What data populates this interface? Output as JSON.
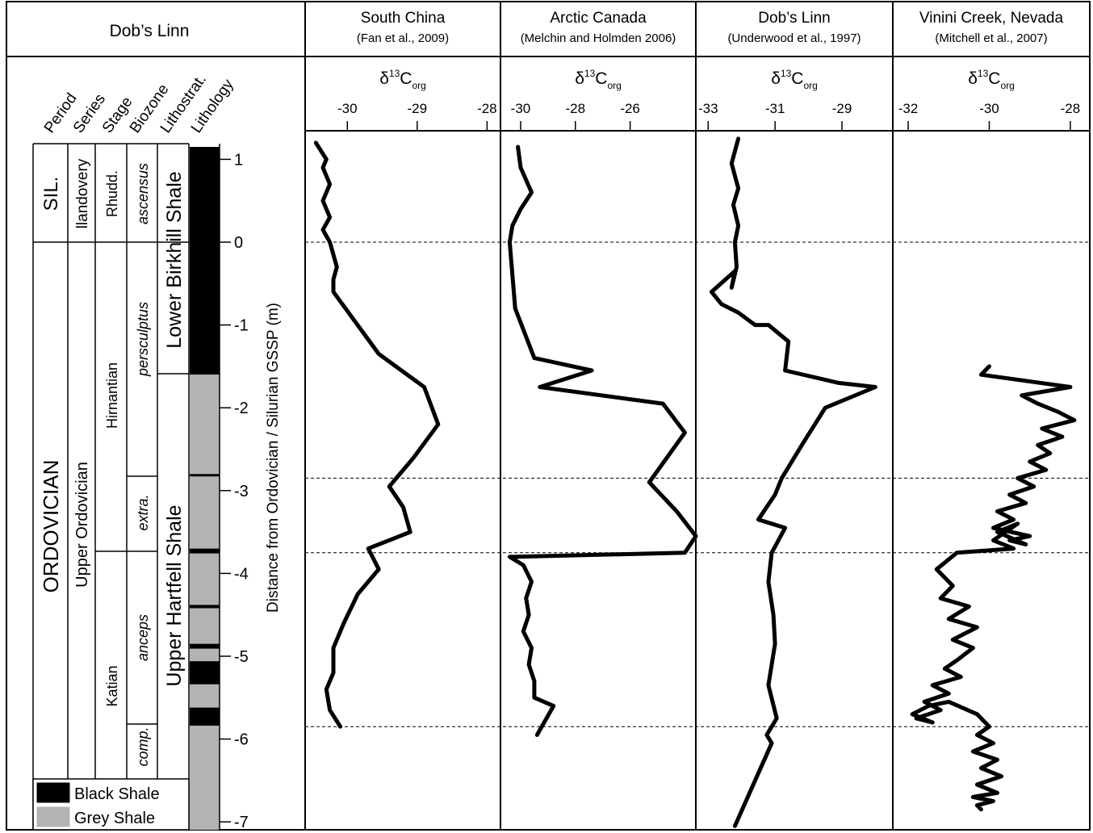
{
  "left_panel": {
    "title": "Dob’s Linn",
    "column_headers": [
      "Period",
      "Series",
      "Stage",
      "Biozone",
      "Lithostrat.",
      "Lithology"
    ],
    "depth_axis": {
      "label": "Distance from Ordovician / Silurian GSSP (m)",
      "ticks": [
        1,
        0,
        -1,
        -2,
        -3,
        -4,
        -5,
        -6,
        -7
      ],
      "tick_labels": [
        "1",
        "0",
        "-1",
        "-2",
        "-3",
        "-4",
        "-5",
        "-6",
        "-7"
      ],
      "range": [
        1.2,
        -7.1
      ]
    },
    "period": [
      {
        "label": "SIL.",
        "from": 1.15,
        "to": 0
      },
      {
        "label": "ORDOVICIAN",
        "from": 0,
        "to": -7.1
      }
    ],
    "series": [
      {
        "label": "llandovery",
        "from": 1.15,
        "to": 0
      },
      {
        "label": "Upper Ordovician",
        "from": 0,
        "to": -7.1
      }
    ],
    "stage": [
      {
        "label": "Rhudd.",
        "from": 1.15,
        "to": 0
      },
      {
        "label": "Hirnantian",
        "from": 0,
        "to": -3.75
      },
      {
        "label": "Katian",
        "from": -3.75,
        "to": -7.1
      }
    ],
    "biozone": [
      {
        "label": "ascensus",
        "from": 1.15,
        "to": 0
      },
      {
        "label": "persculptus",
        "from": 0,
        "to": -2.85
      },
      {
        "label": "extra.",
        "from": -2.85,
        "to": -3.75
      },
      {
        "label": "anceps",
        "from": -3.75,
        "to": -5.85
      },
      {
        "label": "comp.",
        "from": -5.85,
        "to": -7.1
      }
    ],
    "lithostrat": [
      {
        "label": "Lower Birkhill Shale",
        "from": 1.15,
        "to": -1.6
      },
      {
        "label": "Upper Hartfell Shale",
        "from": -1.6,
        "to": -7.1
      }
    ],
    "lithology": [
      {
        "type": "black",
        "from": 1.15,
        "to": -1.6
      },
      {
        "type": "grey",
        "from": -1.6,
        "to": -2.8
      },
      {
        "type": "black",
        "from": -2.8,
        "to": -2.83
      },
      {
        "type": "grey",
        "from": -2.83,
        "to": -3.7
      },
      {
        "type": "black",
        "from": -3.7,
        "to": -3.76
      },
      {
        "type": "grey",
        "from": -3.76,
        "to": -4.38
      },
      {
        "type": "black",
        "from": -4.38,
        "to": -4.42
      },
      {
        "type": "grey",
        "from": -4.42,
        "to": -4.85
      },
      {
        "type": "black",
        "from": -4.85,
        "to": -4.91
      },
      {
        "type": "grey",
        "from": -4.91,
        "to": -5.06
      },
      {
        "type": "black",
        "from": -5.06,
        "to": -5.34
      },
      {
        "type": "grey",
        "from": -5.34,
        "to": -5.62
      },
      {
        "type": "black",
        "from": -5.62,
        "to": -5.84
      },
      {
        "type": "grey",
        "from": -5.84,
        "to": -7.1
      }
    ],
    "legend": [
      {
        "type": "black",
        "label": "Black Shale"
      },
      {
        "type": "grey",
        "label": "Grey Shale"
      }
    ],
    "colors": {
      "black": "#000000",
      "grey": "#b3b3b3"
    }
  },
  "boundaries": [
    0,
    -2.85,
    -3.75,
    -5.85
  ],
  "chart_data": [
    {
      "type": "line",
      "title": "South China",
      "subtitle": "(Fan et al., 2009)",
      "xlabel_base": "δ",
      "xlabel_sup": "13",
      "xlabel_main": "C",
      "xlabel_sub": "org",
      "xlim": [
        -30.5,
        -27.9
      ],
      "ticks": [
        -30,
        -29,
        -28
      ],
      "tick_labels": [
        "-30",
        "-29",
        "-28"
      ],
      "series": [
        {
          "x": [
            -30.45,
            -30.3,
            -30.35,
            -30.25,
            -30.35,
            -30.25,
            -30.35,
            -30.25,
            -30.2,
            -30.15,
            -30.2,
            -30.2,
            -29.55,
            -28.9,
            -28.7,
            -29.05,
            -29.4,
            -29.2,
            -29.1,
            -29.7,
            -29.55,
            -29.85,
            -30.05,
            -30.2,
            -30.2,
            -30.3,
            -30.25,
            -30.1
          ],
          "y": [
            1.2,
            1.0,
            0.9,
            0.7,
            0.5,
            0.3,
            0.15,
            0.0,
            -0.15,
            -0.3,
            -0.45,
            -0.6,
            -1.35,
            -1.75,
            -2.2,
            -2.6,
            -2.95,
            -3.2,
            -3.5,
            -3.7,
            -3.95,
            -4.25,
            -4.6,
            -4.9,
            -5.2,
            -5.4,
            -5.65,
            -5.85
          ]
        }
      ]
    },
    {
      "type": "line",
      "title": "Arctic Canada",
      "subtitle": "(Melchin and Holmden 2006)",
      "xlabel_base": "δ",
      "xlabel_sup": "13",
      "xlabel_main": "C",
      "xlabel_sub": "org",
      "xlim": [
        -30.5,
        -23.6
      ],
      "ticks": [
        -30,
        -28,
        -26
      ],
      "tick_labels": [
        "-30",
        "-28",
        "-26"
      ],
      "series": [
        {
          "x": [
            -30.1,
            -30.0,
            -29.6,
            -30.0,
            -30.3,
            -30.4,
            -30.3,
            -30.2,
            -29.5,
            -27.4,
            -29.3,
            -24.8,
            -24.0,
            -25.3,
            -24.3,
            -23.6,
            -24.0,
            -30.4,
            -29.9,
            -29.6,
            -29.8,
            -29.7,
            -29.9,
            -29.6,
            -29.7,
            -29.5,
            -29.5,
            -28.8,
            -29.4
          ],
          "y": [
            1.15,
            0.9,
            0.6,
            0.4,
            0.2,
            0.0,
            -0.4,
            -0.8,
            -1.4,
            -1.55,
            -1.75,
            -1.95,
            -2.3,
            -2.9,
            -3.25,
            -3.55,
            -3.75,
            -3.8,
            -3.9,
            -4.1,
            -4.3,
            -4.5,
            -4.7,
            -4.9,
            -5.1,
            -5.3,
            -5.5,
            -5.6,
            -5.95
          ]
        }
      ]
    },
    {
      "type": "line",
      "title": "Dob’s Linn",
      "subtitle": "(Underwood et al., 1997)",
      "xlabel_base": "δ",
      "xlabel_sup": "13",
      "xlabel_main": "C",
      "xlabel_sub": "org",
      "xlim": [
        -33.2,
        -27.6
      ],
      "ticks": [
        -33,
        -31,
        -29
      ],
      "tick_labels": [
        "-33",
        "-31",
        "-29"
      ],
      "series": [
        {
          "x": [
            -32.1,
            -32.3,
            -32.1,
            -32.25,
            -32.1,
            -32.2,
            -32.15,
            -32.3,
            -32.2,
            -32.9,
            -32.6,
            -32.1,
            -31.6,
            -31.2,
            -30.6,
            -30.7,
            -29.1,
            -28.0,
            -29.5,
            -30.2,
            -30.8,
            -31.0,
            -31.5,
            -30.7,
            -31.1,
            -31.2,
            -31.05,
            -31.0,
            -31.2,
            -30.95,
            -31.25,
            -31.1,
            -32.2
          ],
          "y": [
            1.25,
            0.95,
            0.65,
            0.45,
            0.2,
            0.0,
            -0.3,
            -0.55,
            -0.35,
            -0.6,
            -0.75,
            -0.85,
            -1.0,
            -1.0,
            -1.2,
            -1.55,
            -1.7,
            -1.75,
            -2.0,
            -2.45,
            -2.85,
            -3.05,
            -3.35,
            -3.45,
            -3.75,
            -4.1,
            -4.5,
            -4.85,
            -5.35,
            -5.75,
            -5.95,
            -6.05,
            -7.05
          ]
        }
      ]
    },
    {
      "type": "line",
      "title": "Vinini Creek, Nevada",
      "subtitle": "(Mitchell et al., 2007)",
      "xlabel_base": "δ",
      "xlabel_sup": "13",
      "xlabel_main": "C",
      "xlabel_sub": "org",
      "xlim": [
        -32.3,
        -27.6
      ],
      "ticks": [
        -32,
        -30,
        -28
      ],
      "tick_labels": [
        "-32",
        "-30",
        "-28"
      ],
      "series": [
        {
          "x": [
            -30.0,
            -30.2,
            -28.0,
            -29.2,
            -28.8,
            -28.3,
            -27.9,
            -28.7,
            -28.2,
            -28.8,
            -28.5,
            -29.0,
            -28.6,
            -29.3,
            -28.9,
            -29.5,
            -29.1,
            -29.8,
            -29.4,
            -29.9,
            -29.0,
            -29.5,
            -29.1,
            -29.8,
            -29.3,
            -29.9,
            -29.4,
            -30.8,
            -31.3,
            -30.9,
            -31.2,
            -30.5,
            -31.0,
            -30.3,
            -30.9,
            -30.4,
            -30.8,
            -31.1,
            -30.7,
            -31.4,
            -31.0,
            -31.6,
            -31.2,
            -31.8,
            -31.4,
            -31.9,
            -31.5,
            -31.0,
            -30.3,
            -30.0,
            -30.3,
            -29.9,
            -30.4,
            -29.8,
            -30.2,
            -29.7,
            -30.3,
            -29.8,
            -30.4,
            -29.9,
            -30.3,
            -30.2
          ],
          "y": [
            -1.5,
            -1.6,
            -1.75,
            -1.85,
            -1.95,
            -2.05,
            -2.15,
            -2.25,
            -2.35,
            -2.45,
            -2.55,
            -2.65,
            -2.75,
            -2.85,
            -2.95,
            -3.05,
            -3.15,
            -3.25,
            -3.35,
            -3.45,
            -3.55,
            -3.6,
            -3.65,
            -3.5,
            -3.4,
            -3.6,
            -3.7,
            -3.75,
            -3.95,
            -4.15,
            -4.3,
            -4.4,
            -4.55,
            -4.65,
            -4.8,
            -4.9,
            -5.05,
            -5.15,
            -5.25,
            -5.35,
            -5.45,
            -5.55,
            -5.65,
            -5.75,
            -5.8,
            -5.7,
            -5.6,
            -5.55,
            -5.7,
            -5.85,
            -5.95,
            -6.05,
            -6.15,
            -6.25,
            -6.35,
            -6.45,
            -6.55,
            -6.65,
            -6.7,
            -6.75,
            -6.8,
            -6.85
          ]
        }
      ]
    }
  ]
}
